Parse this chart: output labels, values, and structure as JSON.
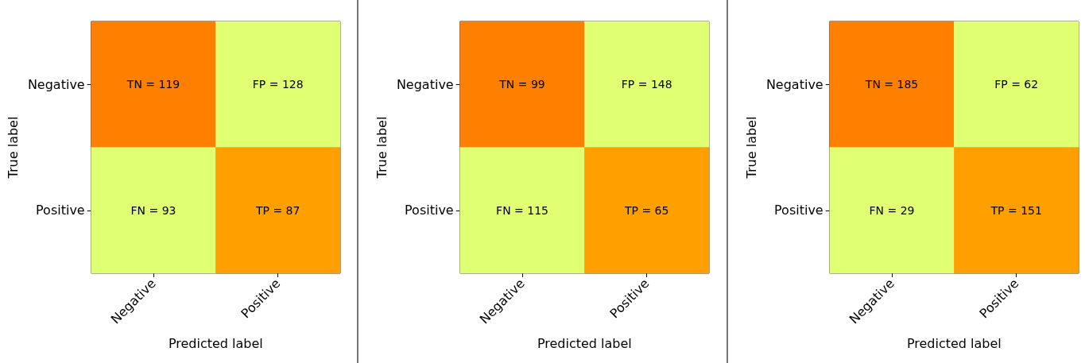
{
  "chart_data": [
    {
      "type": "heatmap",
      "xlabel": "Predicted label",
      "ylabel": "True label",
      "categories": [
        "Negative",
        "Positive"
      ],
      "y_categories": [
        "Negative",
        "Positive"
      ],
      "cells": [
        [
          119,
          128
        ],
        [
          93,
          87
        ]
      ],
      "cell_labels": [
        [
          "TN = 119",
          "FP = 128"
        ],
        [
          "FN = 93",
          "TP = 87"
        ]
      ],
      "colors": [
        [
          "#ff8000",
          "#e1ff72"
        ],
        [
          "#e1ff72",
          "#ffa000"
        ]
      ]
    },
    {
      "type": "heatmap",
      "xlabel": "Predicted label",
      "ylabel": "True label",
      "categories": [
        "Negative",
        "Positive"
      ],
      "y_categories": [
        "Negative",
        "Positive"
      ],
      "cells": [
        [
          99,
          148
        ],
        [
          115,
          65
        ]
      ],
      "cell_labels": [
        [
          "TN = 99",
          "FP = 148"
        ],
        [
          "FN = 115",
          "TP = 65"
        ]
      ],
      "colors": [
        [
          "#ff8000",
          "#e1ff72"
        ],
        [
          "#e1ff72",
          "#ffa000"
        ]
      ]
    },
    {
      "type": "heatmap",
      "xlabel": "Predicted label",
      "ylabel": "True label",
      "categories": [
        "Negative",
        "Positive"
      ],
      "y_categories": [
        "Negative",
        "Positive"
      ],
      "cells": [
        [
          185,
          62
        ],
        [
          29,
          151
        ]
      ],
      "cell_labels": [
        [
          "TN = 185",
          "FP = 62"
        ],
        [
          "FN = 29",
          "TP = 151"
        ]
      ],
      "colors": [
        [
          "#ff8000",
          "#e1ff72"
        ],
        [
          "#e1ff72",
          "#ffa000"
        ]
      ]
    }
  ]
}
